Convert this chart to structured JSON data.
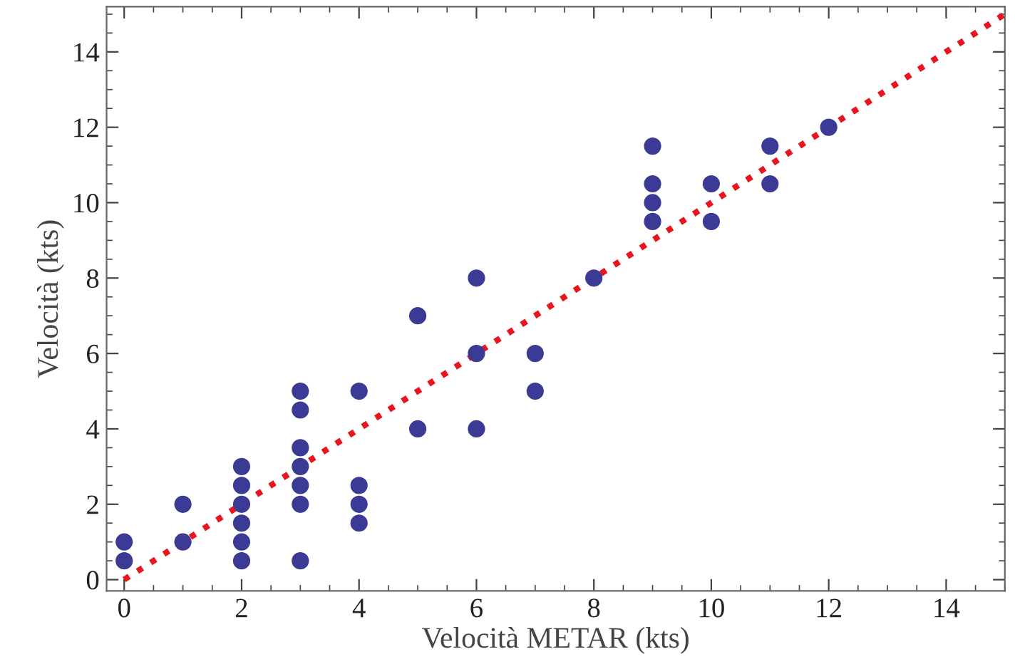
{
  "chart_data": {
    "type": "scatter",
    "xlabel": "Velocità METAR (kts)",
    "ylabel": "Velocità (kts)",
    "xlim": [
      -0.3,
      15
    ],
    "ylim": [
      -0.3,
      15.2
    ],
    "xticks": [
      0,
      2,
      4,
      6,
      8,
      10,
      12,
      14
    ],
    "yticks": [
      0,
      2,
      4,
      6,
      8,
      10,
      12,
      14
    ],
    "grid": false,
    "legend": false,
    "marker": "circle",
    "series": [
      {
        "color": "#3b3b96",
        "x": [
          0,
          0,
          1,
          1,
          2,
          2,
          2,
          2,
          2,
          2,
          3,
          3,
          3,
          3,
          3,
          3,
          3,
          4,
          4,
          4,
          4,
          5,
          5,
          6,
          6,
          6,
          7,
          7,
          8,
          9,
          9,
          9,
          9,
          10,
          10,
          11,
          11,
          12
        ],
        "values": [
          1,
          0.5,
          2,
          1,
          3,
          2.5,
          2,
          1.5,
          1,
          0.5,
          5,
          4.5,
          3.5,
          3,
          2.5,
          2,
          0.5,
          5,
          2.5,
          2,
          1.5,
          7,
          4,
          8,
          6,
          4,
          6,
          5,
          8,
          11.5,
          10.5,
          10,
          9.5,
          10.5,
          9.5,
          11.5,
          10.5,
          12
        ]
      },
      {
        "type": "line",
        "color": "#e8141e",
        "line_style": "dotted",
        "marker": "none",
        "x": [
          0,
          15
        ],
        "values": [
          0,
          15
        ]
      }
    ]
  }
}
